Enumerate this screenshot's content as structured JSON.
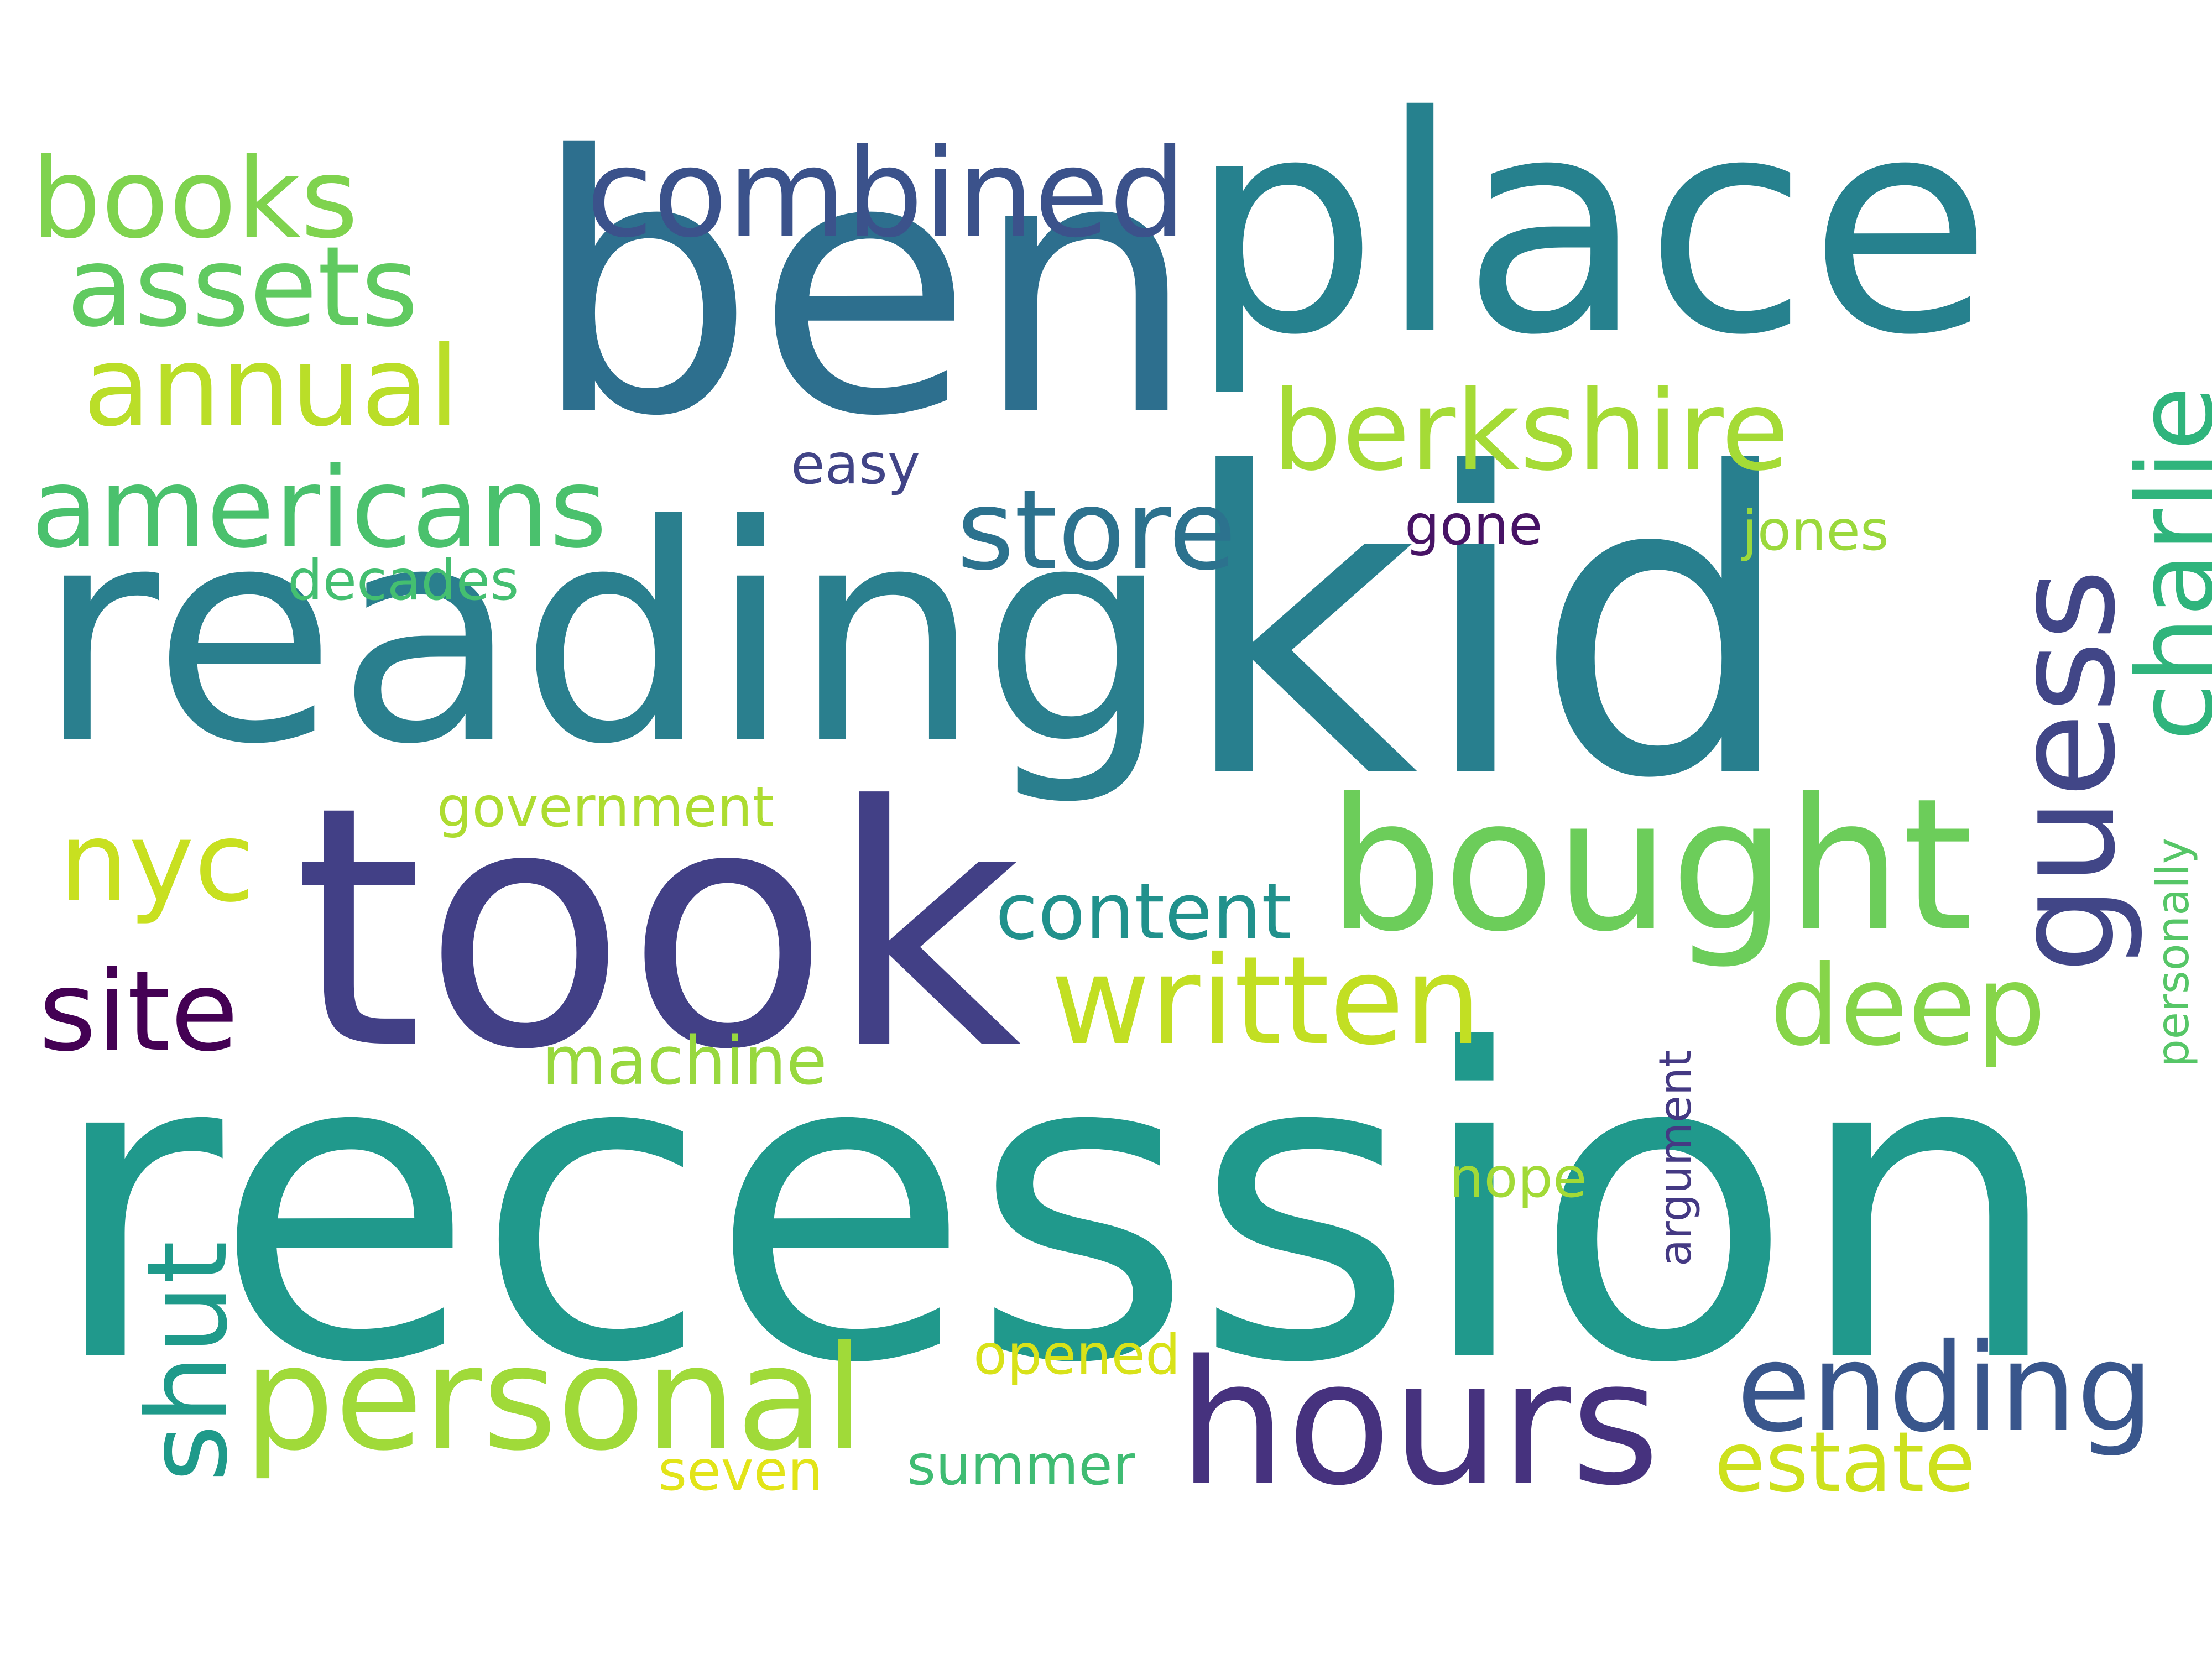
{
  "words": {
    "recession": {
      "text": "recession",
      "color": "#20998c"
    },
    "reading": {
      "text": "reading",
      "color": "#2a7f8e"
    },
    "kid": {
      "text": "kid",
      "color": "#287f8e"
    },
    "ben": {
      "text": "ben",
      "color": "#2d6f8e"
    },
    "place": {
      "text": "place",
      "color": "#26818e"
    },
    "took": {
      "text": "took",
      "color": "#424086"
    },
    "bought": {
      "text": "bought",
      "color": "#6ccd5a"
    },
    "guess": {
      "text": "guess",
      "color": "#414687"
    },
    "hours": {
      "text": "hours",
      "color": "#46327e"
    },
    "personal": {
      "text": "personal",
      "color": "#a0da39"
    },
    "charlie": {
      "text": "charlie",
      "color": "#2fb47c"
    },
    "combined": {
      "text": "combined",
      "color": "#3b528b"
    },
    "books": {
      "text": "books",
      "color": "#7fd34e"
    },
    "assets": {
      "text": "assets",
      "color": "#60ca60"
    },
    "annual": {
      "text": "annual",
      "color": "#bade28"
    },
    "americans": {
      "text": "americans",
      "color": "#4ac16d"
    },
    "berkshire": {
      "text": "berkshire",
      "color": "#a5db36"
    },
    "store": {
      "text": "store",
      "color": "#2c728e"
    },
    "written": {
      "text": "written",
      "color": "#c2df23"
    },
    "deep": {
      "text": "deep",
      "color": "#86d549"
    },
    "nyc": {
      "text": "nyc",
      "color": "#c8e020"
    },
    "site": {
      "text": "site",
      "color": "#440154"
    },
    "content": {
      "text": "content",
      "color": "#21918c"
    },
    "shut": {
      "text": "shut",
      "color": "#1f9a8a"
    },
    "ending": {
      "text": "ending",
      "color": "#39568c"
    },
    "estate": {
      "text": "estate",
      "color": "#cde11d"
    },
    "machine": {
      "text": "machine",
      "color": "#98d83e"
    },
    "government": {
      "text": "government",
      "color": "#addc30"
    },
    "easy": {
      "text": "easy",
      "color": "#414487"
    },
    "gone": {
      "text": "gone",
      "color": "#471365"
    },
    "jones": {
      "text": "jones",
      "color": "#9bd93c"
    },
    "decades": {
      "text": "decades",
      "color": "#44bf70"
    },
    "opened": {
      "text": "opened",
      "color": "#d8e219"
    },
    "seven": {
      "text": "seven",
      "color": "#e2e418"
    },
    "summer": {
      "text": "summer",
      "color": "#3fbc73"
    },
    "nope": {
      "text": "nope",
      "color": "#a2da37"
    },
    "argument": {
      "text": "argument",
      "color": "#443983"
    },
    "personally": {
      "text": "personally",
      "color": "#56c667"
    }
  }
}
